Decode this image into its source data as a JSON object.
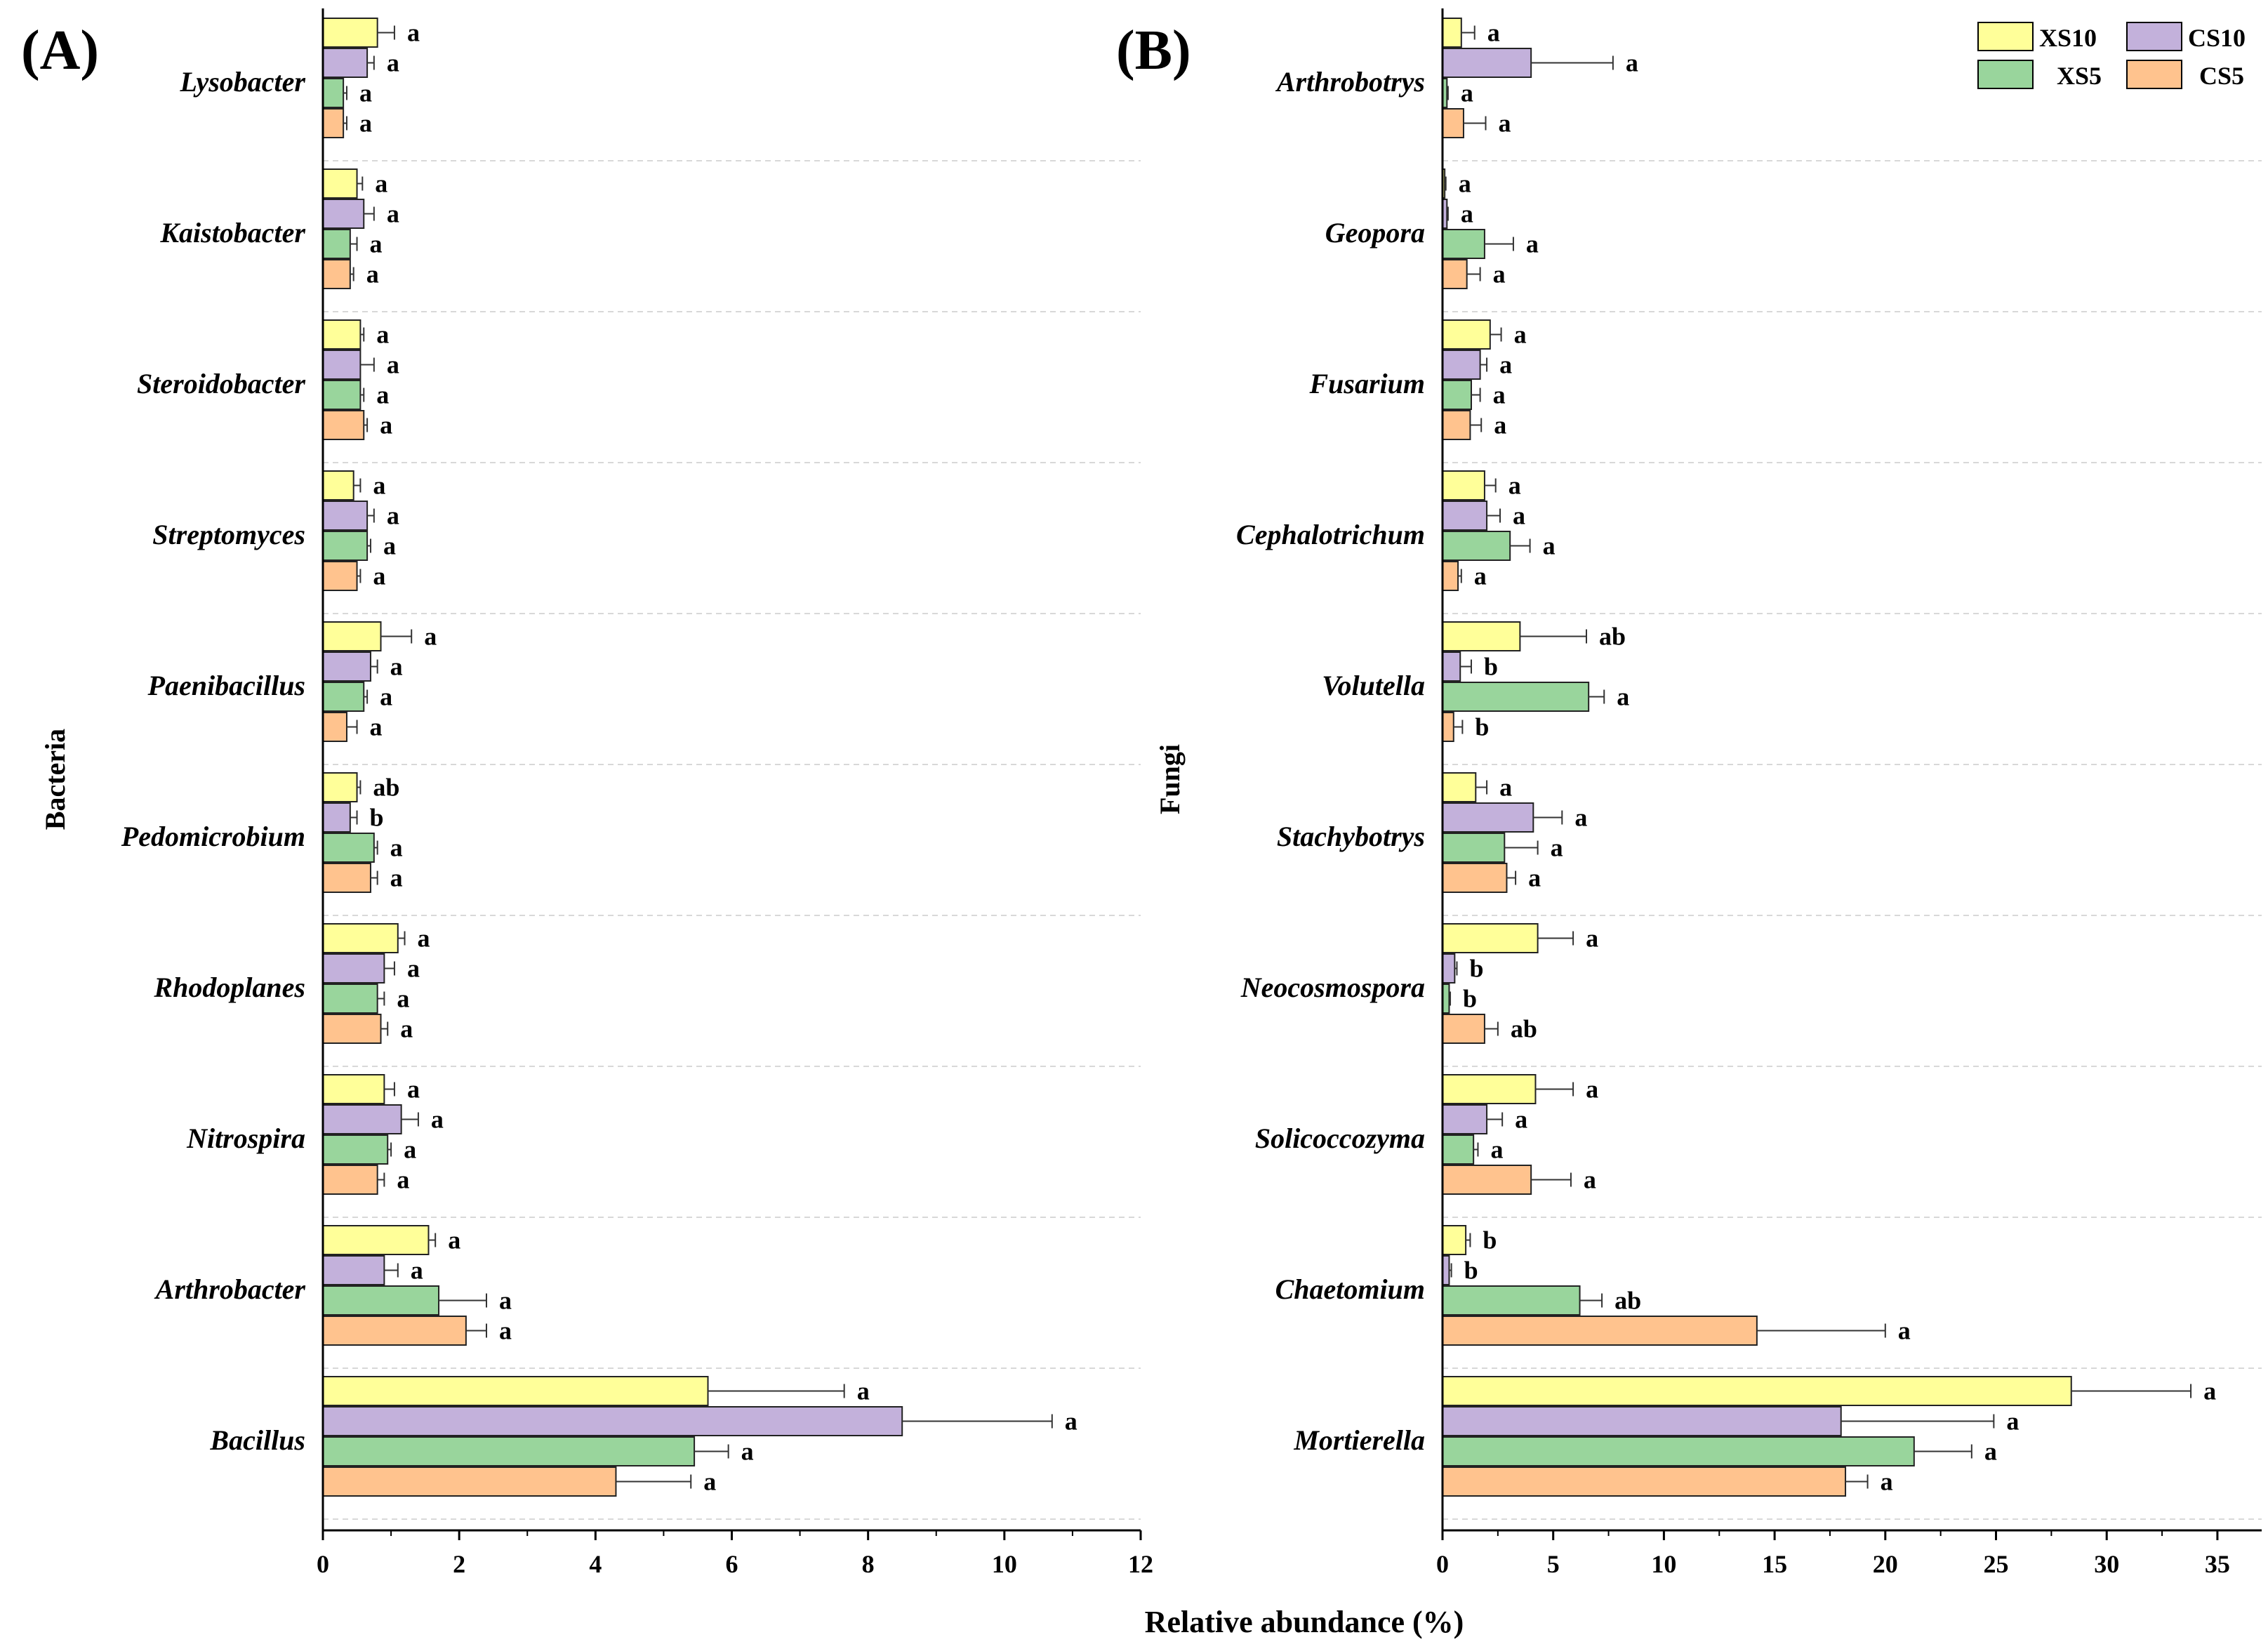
{
  "chart_data": {
    "type": "bar",
    "orientation": "horizontal",
    "x_axis_label": "Relative abundance (%)",
    "legend": [
      "XS10",
      "CS10",
      "XS5",
      "CS5"
    ],
    "colors": {
      "XS10": "#ffff99",
      "CS10": "#c3b1db",
      "XS5": "#99d59c",
      "CS5": "#ffc38e"
    },
    "panels": [
      {
        "panel_label": "(A)",
        "y_axis_label": "Bacteria",
        "xlim": [
          0,
          12
        ],
        "xticks": [
          0,
          2,
          4,
          6,
          8,
          10,
          12
        ],
        "categories": [
          "Lysobacter",
          "Kaistobacter",
          "Steroidobacter",
          "Streptomyces",
          "Paenibacillus",
          "Pedomicrobium",
          "Rhodoplanes",
          "Nitrospira",
          "Arthrobacter",
          "Bacillus"
        ],
        "series": [
          {
            "name": "XS10",
            "values": [
              0.8,
              0.5,
              0.55,
              0.45,
              0.85,
              0.5,
              1.1,
              0.9,
              1.55,
              5.65
            ],
            "errors": [
              0.25,
              0.08,
              0.05,
              0.1,
              0.45,
              0.05,
              0.1,
              0.15,
              0.1,
              2.0
            ],
            "letters": [
              "a",
              "a",
              "a",
              "a",
              "a",
              "ab",
              "a",
              "a",
              "a",
              "a"
            ]
          },
          {
            "name": "CS10",
            "values": [
              0.65,
              0.6,
              0.55,
              0.65,
              0.7,
              0.4,
              0.9,
              1.15,
              0.9,
              8.5
            ],
            "errors": [
              0.1,
              0.15,
              0.2,
              0.1,
              0.1,
              0.1,
              0.15,
              0.25,
              0.2,
              2.2
            ],
            "letters": [
              "a",
              "a",
              "a",
              "a",
              "a",
              "b",
              "a",
              "a",
              "a",
              "a"
            ]
          },
          {
            "name": "XS5",
            "values": [
              0.3,
              0.4,
              0.55,
              0.65,
              0.6,
              0.75,
              0.8,
              0.95,
              1.7,
              5.45
            ],
            "errors": [
              0.05,
              0.1,
              0.05,
              0.05,
              0.05,
              0.05,
              0.1,
              0.05,
              0.7,
              0.5
            ],
            "letters": [
              "a",
              "a",
              "a",
              "a",
              "a",
              "a",
              "a",
              "a",
              "a",
              "a"
            ]
          },
          {
            "name": "CS5",
            "values": [
              0.3,
              0.4,
              0.6,
              0.5,
              0.35,
              0.7,
              0.85,
              0.8,
              2.1,
              4.3
            ],
            "errors": [
              0.05,
              0.05,
              0.05,
              0.05,
              0.15,
              0.1,
              0.1,
              0.1,
              0.3,
              1.1
            ],
            "letters": [
              "a",
              "a",
              "a",
              "a",
              "a",
              "a",
              "a",
              "a",
              "a",
              "a"
            ]
          }
        ]
      },
      {
        "panel_label": "(B)",
        "y_axis_label": "Fungi",
        "xlim": [
          0,
          37
        ],
        "xticks": [
          0,
          5,
          10,
          15,
          20,
          25,
          30,
          35
        ],
        "categories": [
          "Arthrobotrys",
          "Geopora",
          "Fusarium",
          "Cephalotrichum",
          "Volutella",
          "Stachybotrys",
          "Neocosmospora",
          "Solicoccozyma",
          "Chaetomium",
          "Mortierella"
        ],
        "series": [
          {
            "name": "XS10",
            "values": [
              0.85,
              0.1,
              2.15,
              1.9,
              3.5,
              1.5,
              4.3,
              4.2,
              1.05,
              28.4
            ],
            "errors": [
              0.6,
              0.05,
              0.5,
              0.5,
              3.0,
              0.5,
              1.6,
              1.7,
              0.2,
              5.4
            ],
            "letters": [
              "a",
              "a",
              "a",
              "a",
              "ab",
              "a",
              "a",
              "a",
              "b",
              "a"
            ]
          },
          {
            "name": "CS10",
            "values": [
              4.0,
              0.2,
              1.7,
              2.0,
              0.8,
              4.1,
              0.55,
              2.0,
              0.3,
              18.0
            ],
            "errors": [
              3.7,
              0.05,
              0.3,
              0.6,
              0.5,
              1.3,
              0.1,
              0.7,
              0.1,
              6.9
            ],
            "letters": [
              "a",
              "a",
              "a",
              "a",
              "b",
              "a",
              "b",
              "a",
              "b",
              "a"
            ]
          },
          {
            "name": "XS5",
            "values": [
              0.2,
              1.9,
              1.3,
              3.05,
              6.6,
              2.8,
              0.3,
              1.4,
              6.2,
              21.3
            ],
            "errors": [
              0.05,
              1.3,
              0.4,
              0.9,
              0.7,
              1.5,
              0.05,
              0.2,
              1.0,
              2.6
            ],
            "letters": [
              "a",
              "a",
              "a",
              "a",
              "a",
              "a",
              "b",
              "a",
              "ab",
              "a"
            ]
          },
          {
            "name": "CS5",
            "values": [
              0.95,
              1.1,
              1.25,
              0.7,
              0.5,
              2.9,
              1.9,
              4.0,
              14.2,
              18.2
            ],
            "errors": [
              1.0,
              0.6,
              0.5,
              0.15,
              0.4,
              0.4,
              0.6,
              1.8,
              5.8,
              1.0
            ],
            "letters": [
              "a",
              "a",
              "a",
              "a",
              "b",
              "a",
              "ab",
              "a",
              "a",
              "a"
            ]
          }
        ]
      }
    ]
  }
}
